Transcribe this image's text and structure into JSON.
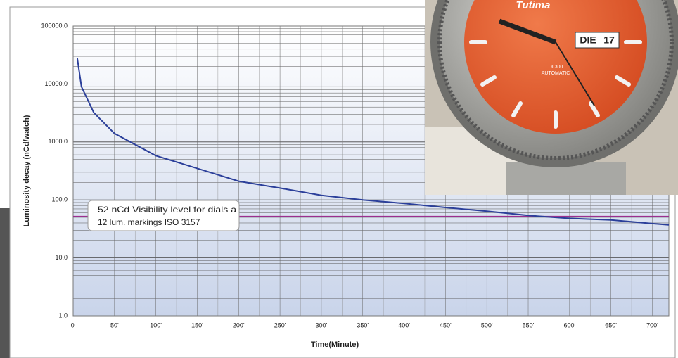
{
  "chart_data": {
    "type": "line",
    "ylabel": "Luminosity decay (nCd/watch)",
    "xlabel": "Time(Minute)",
    "log_y": true,
    "grid": true,
    "minor_grid": true,
    "xlim": [
      0,
      720
    ],
    "ylim": [
      1,
      100000
    ],
    "xticks": [
      {
        "value": 0,
        "label": "0'"
      },
      {
        "value": 50,
        "label": "50'"
      },
      {
        "value": 100,
        "label": "100'"
      },
      {
        "value": 150,
        "label": "150'"
      },
      {
        "value": 200,
        "label": "200'"
      },
      {
        "value": 250,
        "label": "250'"
      },
      {
        "value": 300,
        "label": "300'"
      },
      {
        "value": 350,
        "label": "350'"
      },
      {
        "value": 400,
        "label": "400'"
      },
      {
        "value": 450,
        "label": "450'"
      },
      {
        "value": 500,
        "label": "500'"
      },
      {
        "value": 550,
        "label": "550'"
      },
      {
        "value": 600,
        "label": "600'"
      },
      {
        "value": 650,
        "label": "650'"
      },
      {
        "value": 700,
        "label": "700'"
      }
    ],
    "yticks": [
      {
        "value": 1,
        "label": "1.0"
      },
      {
        "value": 10,
        "label": "10.0"
      },
      {
        "value": 100,
        "label": "100.0"
      },
      {
        "value": 1000,
        "label": "1000.0"
      },
      {
        "value": 10000,
        "label": "10000.0"
      },
      {
        "value": 100000,
        "label": "100000.0"
      }
    ],
    "series": [
      {
        "color": "#2b3f9a",
        "x": [
          5,
          10,
          25,
          50,
          100,
          150,
          200,
          250,
          300,
          350,
          400,
          450,
          500,
          550,
          600,
          650,
          700,
          720
        ],
        "values": [
          28000,
          9000,
          3200,
          1400,
          580,
          350,
          210,
          160,
          120,
          100,
          87,
          74,
          64,
          54,
          48,
          45,
          39,
          37
        ]
      }
    ],
    "reference": {
      "value": 52,
      "color": "#9b2f8f",
      "lines": [
        "52 nCd Visibility level for dials a",
        "12 lum. markings ISO 3157"
      ]
    }
  },
  "photo": {
    "brand": "Tutima",
    "model": "DI 300",
    "movement": "AUTOMATIC",
    "day": "DIE",
    "date": "17"
  }
}
